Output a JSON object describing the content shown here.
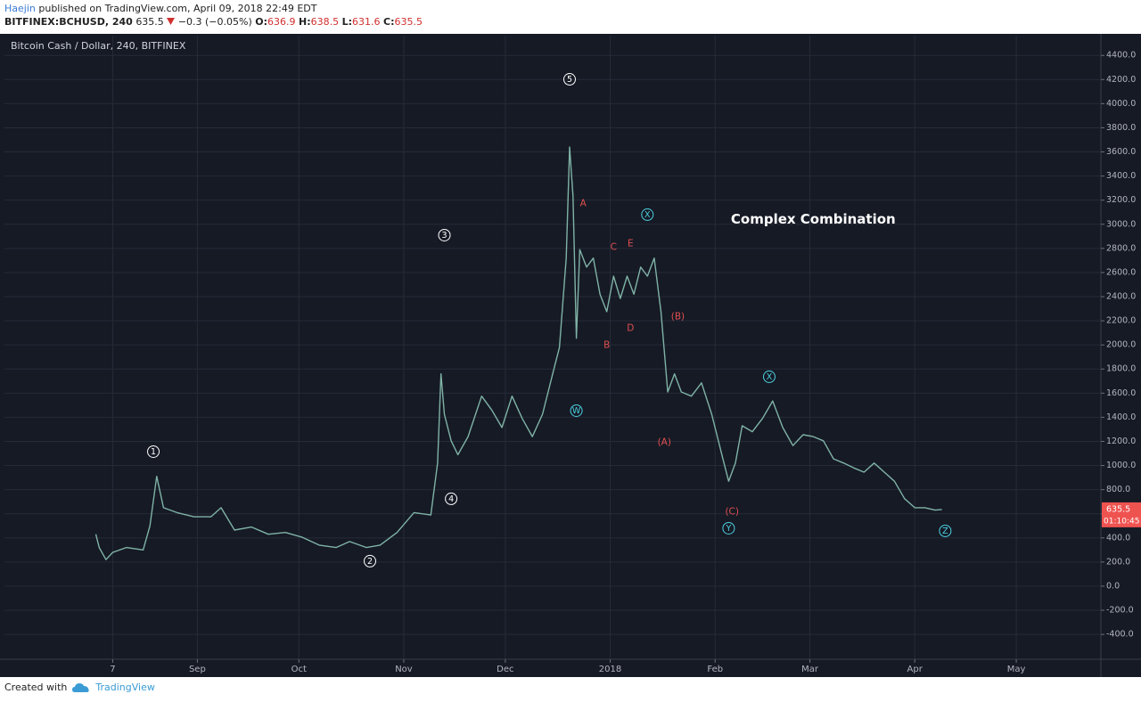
{
  "header": {
    "author": "Haejin",
    "published": "published on TradingView.com, April 09, 2018 22:49 EDT",
    "symbol": "BITFINEX:BCHUSD, 240",
    "price": 635.5,
    "change": "−0.3 (−0.05%)",
    "ohlc": [
      {
        "label": "O:",
        "value": 636.9
      },
      {
        "label": "H:",
        "value": 638.5
      },
      {
        "label": "L:",
        "value": 631.6
      },
      {
        "label": "C:",
        "value": 635.5
      }
    ]
  },
  "chart_data": {
    "type": "line",
    "title": "Bitcoin Cash / Dollar, 240, BITFINEX",
    "series": [
      {
        "color": "#7fb3a6",
        "x": [
          1,
          2,
          4,
          6,
          10,
          15,
          17,
          19,
          21,
          25,
          30,
          35,
          38,
          42,
          47,
          52,
          57,
          62,
          67,
          72,
          76,
          81,
          85,
          90,
          95,
          100,
          102,
          103,
          104,
          106,
          108,
          111,
          115,
          118,
          121,
          124,
          127,
          130,
          133,
          136,
          138,
          140,
          141,
          142,
          143,
          144,
          146,
          148,
          150,
          152,
          154,
          156,
          158,
          160,
          162,
          164,
          166,
          168,
          170,
          172,
          174,
          177,
          180,
          183,
          186,
          188,
          190,
          192,
          195,
          198,
          201,
          204,
          207,
          210,
          213,
          216,
          219,
          222,
          225,
          228,
          231,
          234,
          237,
          240,
          243,
          246,
          249,
          251
        ],
        "values": [
          430,
          320,
          220,
          280,
          320,
          300,
          500,
          910,
          650,
          610,
          575,
          575,
          650,
          465,
          490,
          430,
          445,
          405,
          340,
          320,
          370,
          320,
          340,
          445,
          610,
          590,
          1020,
          1760,
          1425,
          1205,
          1090,
          1240,
          1575,
          1460,
          1315,
          1575,
          1390,
          1240,
          1425,
          1760,
          1980,
          2720,
          3640,
          3235,
          2055,
          2790,
          2645,
          2720,
          2420,
          2275,
          2570,
          2385,
          2570,
          2420,
          2645,
          2570,
          2720,
          2275,
          1610,
          1760,
          1610,
          1575,
          1685,
          1425,
          1090,
          870,
          1020,
          1330,
          1280,
          1390,
          1535,
          1315,
          1165,
          1255,
          1240,
          1205,
          1055,
          1020,
          980,
          945,
          1020,
          945,
          870,
          725,
          650,
          650,
          630,
          635.5
        ]
      }
    ],
    "xlim": [
      -26,
      298
    ],
    "xticks": [
      {
        "value": 6,
        "label": "7"
      },
      {
        "value": 31,
        "label": "Sep"
      },
      {
        "value": 61,
        "label": "Oct"
      },
      {
        "value": 92,
        "label": "Nov"
      },
      {
        "value": 122,
        "label": "Dec"
      },
      {
        "value": 153,
        "label": "2018"
      },
      {
        "value": 184,
        "label": "Feb"
      },
      {
        "value": 212,
        "label": "Mar"
      },
      {
        "value": 243,
        "label": "Apr"
      },
      {
        "value": 273,
        "label": "May"
      }
    ],
    "ylim": [
      -606,
      4564
    ],
    "yticks": [
      {
        "value": -400,
        "label": "-400.0"
      },
      {
        "value": -200,
        "label": "-200.0"
      },
      {
        "value": 0,
        "label": "0.0"
      },
      {
        "value": 200,
        "label": "200.0"
      },
      {
        "value": 400,
        "label": "400.0"
      },
      {
        "value": 600,
        "label": "600.0"
      },
      {
        "value": 800,
        "label": "800.0"
      },
      {
        "value": 1000,
        "label": "1000.0"
      },
      {
        "value": 1200,
        "label": "1200.0"
      },
      {
        "value": 1400,
        "label": "1400.0"
      },
      {
        "value": 1600,
        "label": "1600.0"
      },
      {
        "value": 1800,
        "label": "1800.0"
      },
      {
        "value": 2000,
        "label": "2000.0"
      },
      {
        "value": 2200,
        "label": "2200.0"
      },
      {
        "value": 2400,
        "label": "2400.0"
      },
      {
        "value": 2600,
        "label": "2600.0"
      },
      {
        "value": 2800,
        "label": "2800.0"
      },
      {
        "value": 3000,
        "label": "3000.0"
      },
      {
        "value": 3200,
        "label": "3200.0"
      },
      {
        "value": 3400,
        "label": "3400.0"
      },
      {
        "value": 3600,
        "label": "3600.0"
      },
      {
        "value": 3800,
        "label": "3800.0"
      },
      {
        "value": 4000,
        "label": "4000.0"
      },
      {
        "value": 4200,
        "label": "4200.0"
      },
      {
        "value": 4400,
        "label": "4400.0"
      }
    ],
    "grid": true,
    "last_price": 635.5,
    "countdown": "01:10:45",
    "last_price_color": "#ef5350",
    "annotations": [
      {
        "text": "1",
        "x": 18,
        "y": 1115,
        "color": "#ffffff",
        "circle": true
      },
      {
        "text": "2",
        "x": 82,
        "y": 207,
        "color": "#ffffff",
        "circle": true
      },
      {
        "text": "3",
        "x": 104,
        "y": 2910,
        "color": "#ffffff",
        "circle": true
      },
      {
        "text": "4",
        "x": 106,
        "y": 724,
        "color": "#ffffff",
        "circle": true
      },
      {
        "text": "5",
        "x": 141,
        "y": 4202,
        "color": "#ffffff",
        "circle": true
      },
      {
        "text": "W",
        "x": 143,
        "y": 1455,
        "color": "#4dd0e1",
        "circle": true
      },
      {
        "text": "X",
        "x": 164,
        "y": 3080,
        "color": "#4dd0e1",
        "circle": true
      },
      {
        "text": "Y",
        "x": 188,
        "y": 480,
        "color": "#4dd0e1",
        "circle": true
      },
      {
        "text": "X",
        "x": 200,
        "y": 1736,
        "color": "#4dd0e1",
        "circle": true
      },
      {
        "text": "Z",
        "x": 252,
        "y": 458,
        "color": "#4dd0e1",
        "circle": true
      },
      {
        "text": "A",
        "x": 145,
        "y": 3176,
        "color": "#e05050",
        "circle": false
      },
      {
        "text": "B",
        "x": 152,
        "y": 2001,
        "color": "#e05050",
        "circle": false
      },
      {
        "text": "C",
        "x": 154,
        "y": 2814,
        "color": "#e05050",
        "circle": false
      },
      {
        "text": "D",
        "x": 159,
        "y": 2142,
        "color": "#e05050",
        "circle": false
      },
      {
        "text": "E",
        "x": 159,
        "y": 2843,
        "color": "#e05050",
        "circle": false
      },
      {
        "text": "(A)",
        "x": 169,
        "y": 1196,
        "color": "#e05050",
        "circle": false
      },
      {
        "text": "(B)",
        "x": 173,
        "y": 2238,
        "color": "#e05050",
        "circle": false
      },
      {
        "text": "(C)",
        "x": 189,
        "y": 620,
        "color": "#e05050",
        "circle": false
      },
      {
        "text": "Complex Combination",
        "x": 213,
        "y": 3043,
        "color": "#ffffff",
        "circle": false,
        "bold": true
      }
    ]
  },
  "footer": {
    "created": "Created with",
    "brand": "TradingView"
  }
}
